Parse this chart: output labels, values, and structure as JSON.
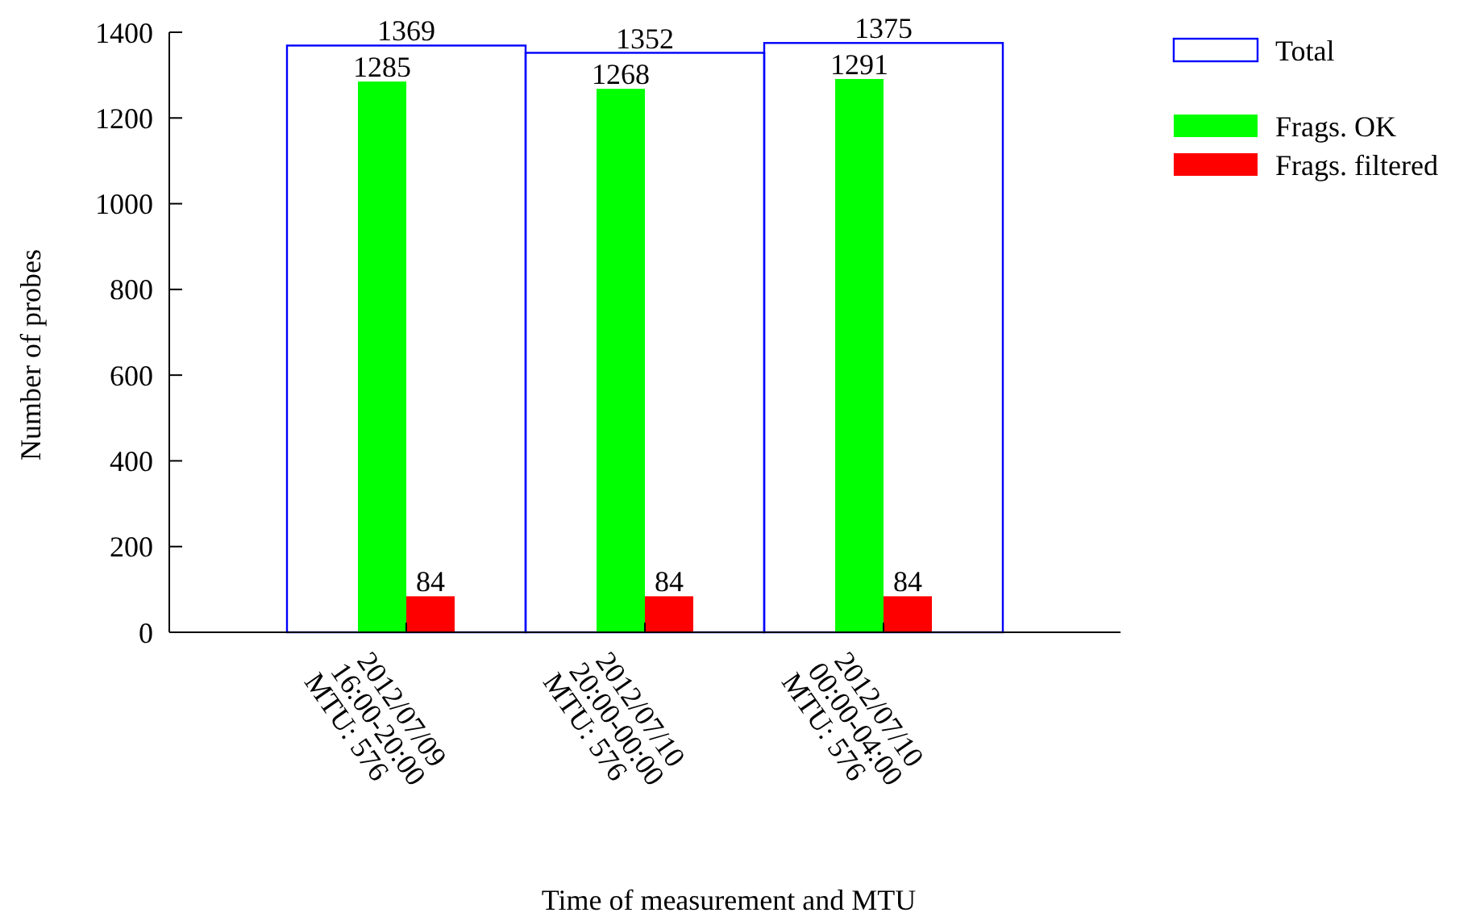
{
  "chart_data": {
    "type": "bar",
    "xlabel": "Time of measurement and MTU",
    "ylabel": "Number of probes",
    "categories": [
      "2012/07/09\n16:00-20:00\nMTU: 576",
      "2012/07/10\n20:00-00:00\nMTU: 576",
      "2012/07/10\n00:00-04:00\nMTU: 576"
    ],
    "series": [
      {
        "name": "Total",
        "color": "#0000ff",
        "values": [
          1369,
          1352,
          1375
        ]
      },
      {
        "name": "Frags. OK",
        "color": "#00ff00",
        "values": [
          1285,
          1268,
          1291
        ]
      },
      {
        "name": "Frags. filtered",
        "color": "#ff0000",
        "values": [
          84,
          84,
          84
        ]
      }
    ],
    "ylim": [
      0,
      1400
    ],
    "yticks": [
      0,
      200,
      400,
      600,
      800,
      1000,
      1200,
      1400
    ],
    "grid": false,
    "legend": "top right",
    "data_labels": true
  }
}
